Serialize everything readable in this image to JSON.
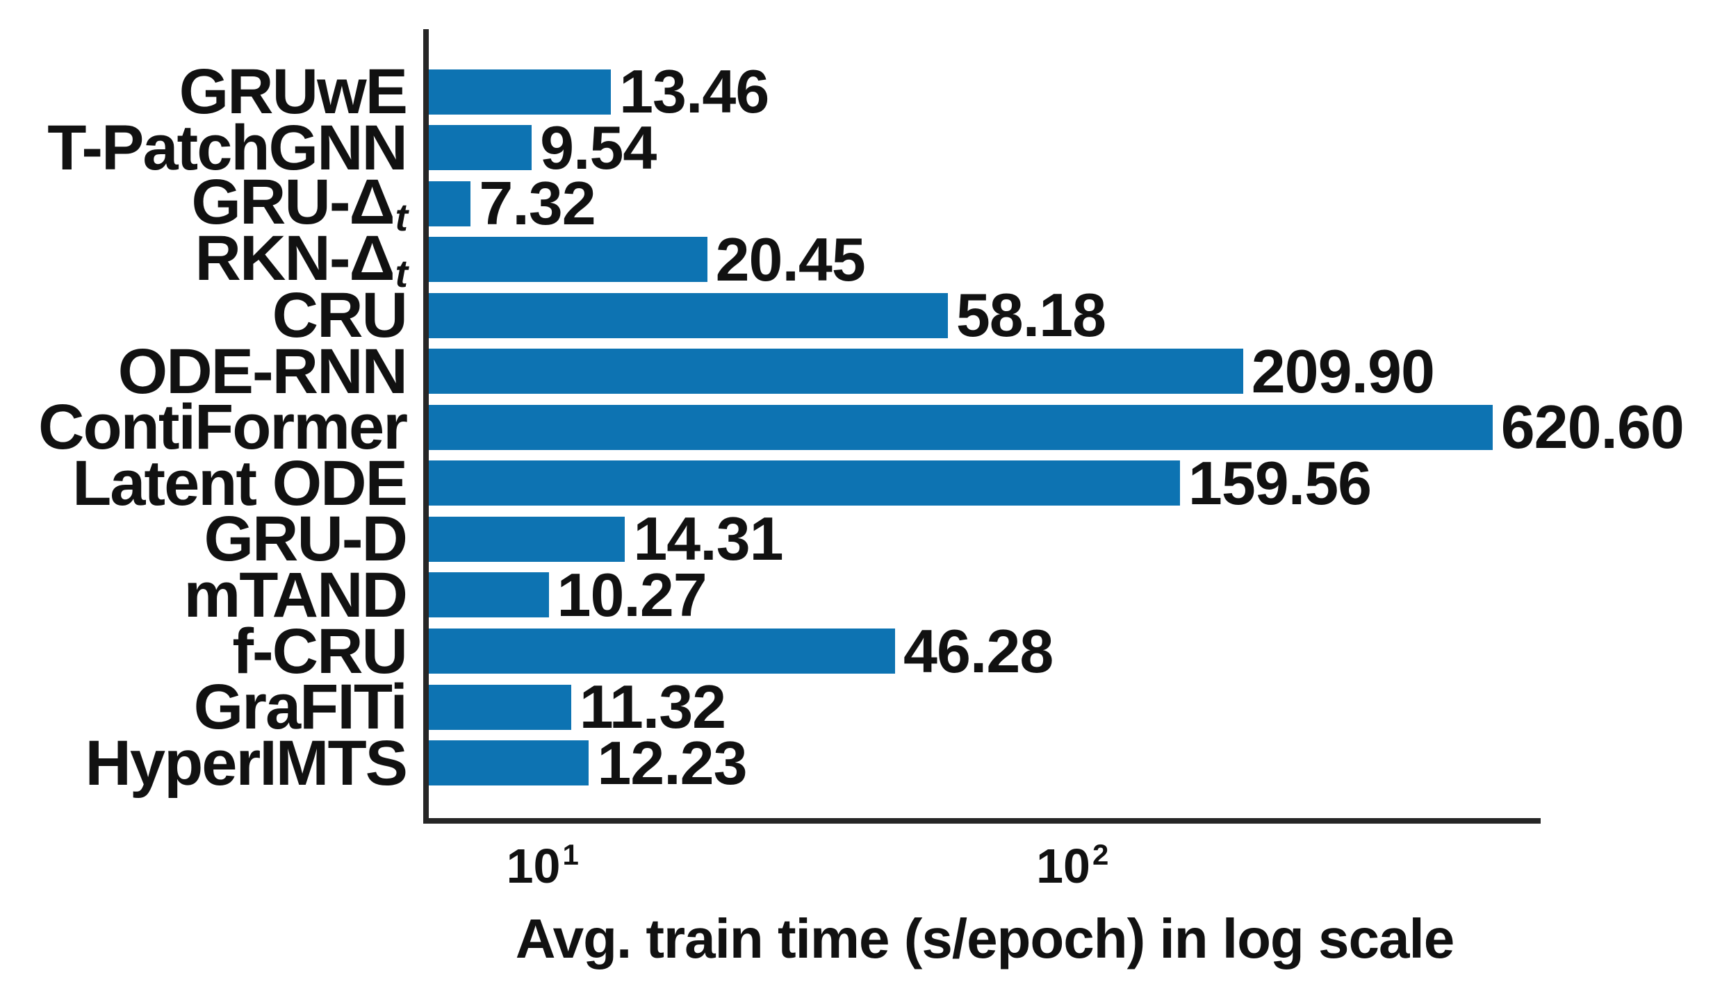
{
  "chart_data": {
    "type": "bar",
    "orientation": "horizontal",
    "xlabel": "Avg. train time (s/epoch) in log scale",
    "x_scale": "log",
    "xlim": [
      6.1,
      765
    ],
    "grid": false,
    "legend": "none",
    "bar_color": "#0d73b2",
    "text_color": "#111111",
    "spine_color": "#262626",
    "x_ticks": [
      {
        "base": "10",
        "exp": "1",
        "value": 10
      },
      {
        "base": "10",
        "exp": "2",
        "value": 100
      }
    ],
    "categories": [
      {
        "label": "GRUwE"
      },
      {
        "label": "T-PatchGNN"
      },
      {
        "label": "GRU-Δ",
        "sub": "t"
      },
      {
        "label": "RKN-Δ",
        "sub": "t"
      },
      {
        "label": "CRU"
      },
      {
        "label": "ODE-RNN"
      },
      {
        "label": "ContiFormer"
      },
      {
        "label": "Latent ODE"
      },
      {
        "label": "GRU-D"
      },
      {
        "label": "mTAND"
      },
      {
        "label": "f-CRU"
      },
      {
        "label": "GraFITi"
      },
      {
        "label": "HyperIMTS"
      }
    ],
    "values": [
      13.46,
      9.54,
      7.32,
      20.45,
      58.18,
      209.9,
      620.6,
      159.56,
      14.31,
      10.27,
      46.28,
      11.32,
      12.23
    ],
    "value_labels": [
      "13.46",
      "9.54",
      "7.32",
      "20.45",
      "58.18",
      "209.90",
      "620.60",
      "159.56",
      "14.31",
      "10.27",
      "46.28",
      "11.32",
      "12.23"
    ]
  }
}
